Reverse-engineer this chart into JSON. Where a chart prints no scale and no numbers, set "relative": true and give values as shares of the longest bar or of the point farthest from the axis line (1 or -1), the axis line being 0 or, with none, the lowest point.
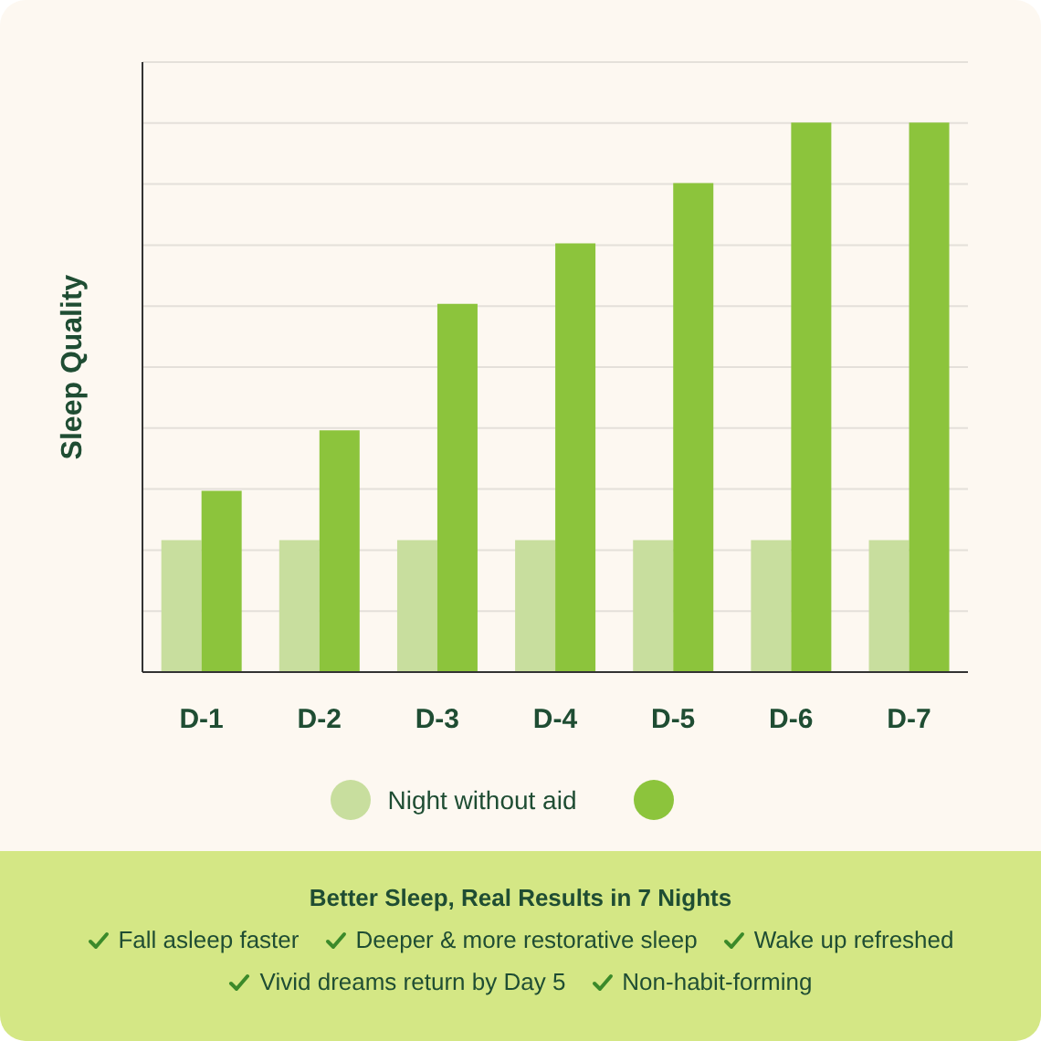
{
  "chart_data": {
    "type": "bar",
    "relative": true,
    "ylabel": "Sleep Quality",
    "categories": [
      "D-1",
      "D-2",
      "D-3",
      "D-4",
      "D-5",
      "D-6",
      "D-7"
    ],
    "series": [
      {
        "name": "Night without aid",
        "color": "#c8de9e",
        "values": [
          0.24,
          0.24,
          0.24,
          0.24,
          0.24,
          0.24,
          0.24
        ]
      },
      {
        "color": "#8cc43c",
        "values": [
          0.33,
          0.44,
          0.67,
          0.78,
          0.89,
          1,
          1
        ]
      }
    ],
    "grid": "y",
    "legend": "bottom",
    "annotations": [
      "Better Sleep, Real Results in 7 Nights",
      "Fall asleep faster",
      "Deeper & more restorative sleep",
      "Wake up refreshed",
      "Vivid dreams return by Day 5",
      "Non-habit-forming"
    ]
  }
}
